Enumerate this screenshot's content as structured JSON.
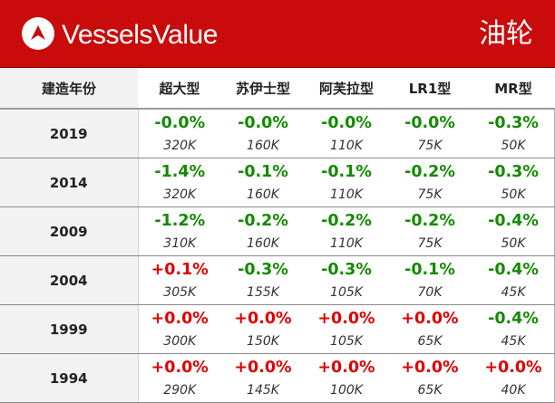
{
  "brand": "VesselsValue",
  "title": "油轮",
  "colors": {
    "header_bg": "#c90b0b",
    "positive": "#e00000",
    "negative": "#138a00",
    "year_bg": "#f2f2f2"
  },
  "columns": [
    "建造年份",
    "超大型",
    "苏伊士型",
    "阿芙拉型",
    "LR1型",
    "MR型"
  ],
  "rows": [
    {
      "year": "2019",
      "cells": [
        {
          "pct": "-0.0%",
          "value": "320K",
          "dir": "neg"
        },
        {
          "pct": "-0.0%",
          "value": "160K",
          "dir": "neg"
        },
        {
          "pct": "-0.0%",
          "value": "110K",
          "dir": "neg"
        },
        {
          "pct": "-0.0%",
          "value": "75K",
          "dir": "neg"
        },
        {
          "pct": "-0.3%",
          "value": "50K",
          "dir": "neg"
        }
      ]
    },
    {
      "year": "2014",
      "cells": [
        {
          "pct": "-1.4%",
          "value": "320K",
          "dir": "neg"
        },
        {
          "pct": "-0.1%",
          "value": "160K",
          "dir": "neg"
        },
        {
          "pct": "-0.1%",
          "value": "110K",
          "dir": "neg"
        },
        {
          "pct": "-0.2%",
          "value": "75K",
          "dir": "neg"
        },
        {
          "pct": "-0.3%",
          "value": "50K",
          "dir": "neg"
        }
      ]
    },
    {
      "year": "2009",
      "cells": [
        {
          "pct": "-1.2%",
          "value": "310K",
          "dir": "neg"
        },
        {
          "pct": "-0.2%",
          "value": "160K",
          "dir": "neg"
        },
        {
          "pct": "-0.2%",
          "value": "110K",
          "dir": "neg"
        },
        {
          "pct": "-0.2%",
          "value": "75K",
          "dir": "neg"
        },
        {
          "pct": "-0.4%",
          "value": "50K",
          "dir": "neg"
        }
      ]
    },
    {
      "year": "2004",
      "cells": [
        {
          "pct": "+0.1%",
          "value": "305K",
          "dir": "pos"
        },
        {
          "pct": "-0.3%",
          "value": "155K",
          "dir": "neg"
        },
        {
          "pct": "-0.3%",
          "value": "105K",
          "dir": "neg"
        },
        {
          "pct": "-0.1%",
          "value": "70K",
          "dir": "neg"
        },
        {
          "pct": "-0.4%",
          "value": "45K",
          "dir": "neg"
        }
      ]
    },
    {
      "year": "1999",
      "cells": [
        {
          "pct": "+0.0%",
          "value": "300K",
          "dir": "pos"
        },
        {
          "pct": "+0.0%",
          "value": "150K",
          "dir": "pos"
        },
        {
          "pct": "+0.0%",
          "value": "105K",
          "dir": "pos"
        },
        {
          "pct": "+0.0%",
          "value": "65K",
          "dir": "pos"
        },
        {
          "pct": "-0.4%",
          "value": "45K",
          "dir": "neg"
        }
      ]
    },
    {
      "year": "1994",
      "cells": [
        {
          "pct": "+0.0%",
          "value": "290K",
          "dir": "pos"
        },
        {
          "pct": "+0.0%",
          "value": "145K",
          "dir": "pos"
        },
        {
          "pct": "+0.0%",
          "value": "100K",
          "dir": "pos"
        },
        {
          "pct": "+0.0%",
          "value": "65K",
          "dir": "pos"
        },
        {
          "pct": "+0.0%",
          "value": "40K",
          "dir": "pos"
        }
      ]
    }
  ]
}
